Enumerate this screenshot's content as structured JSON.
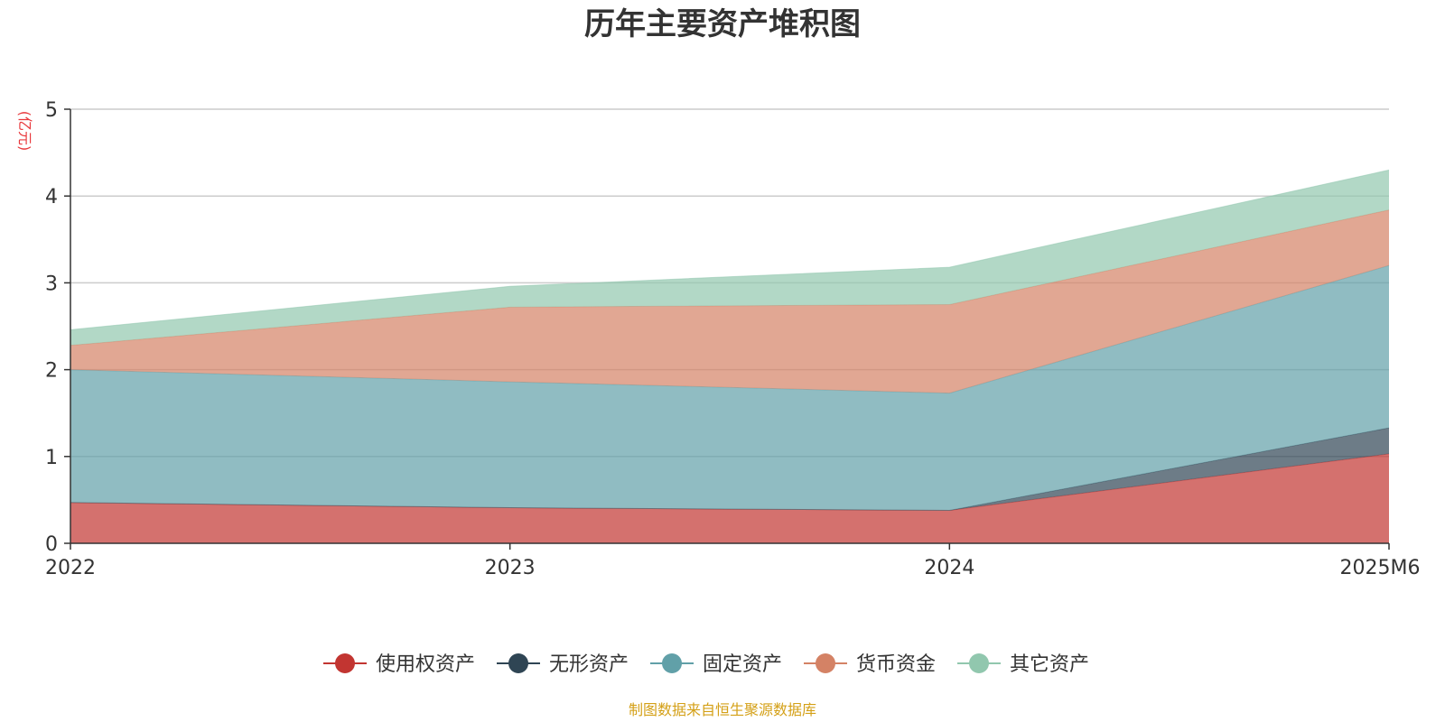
{
  "chart_data": {
    "type": "area",
    "stacked": true,
    "title": "历年主要资产堆积图",
    "ylabel": "(亿元)",
    "ylim": [
      0,
      5
    ],
    "yticks": [
      "0",
      "1",
      "2",
      "3",
      "4",
      "5"
    ],
    "categories": [
      "2022",
      "2023",
      "2024",
      "2025M6"
    ],
    "series": [
      {
        "name": "使用权资产",
        "color": "#c23531",
        "values": [
          0.47,
          0.41,
          0.38,
          1.03
        ]
      },
      {
        "name": "无形资产",
        "color": "#2f4554",
        "values": [
          0.0,
          0.0,
          0.0,
          0.3
        ]
      },
      {
        "name": "固定资产",
        "color": "#61a0a8",
        "values": [
          1.53,
          1.45,
          1.35,
          1.87
        ]
      },
      {
        "name": "货币资金",
        "color": "#d48265",
        "values": [
          0.28,
          0.86,
          1.02,
          0.64
        ]
      },
      {
        "name": "其它资产",
        "color": "#91c7ae",
        "values": [
          0.18,
          0.24,
          0.43,
          0.46
        ]
      }
    ],
    "legend_position": "bottom",
    "grid": true,
    "source": "制图数据来自恒生聚源数据库",
    "colors": {
      "unit": "#e8383c",
      "source": "#d4a017",
      "axis": "#333333",
      "grid": "#cccccc"
    }
  }
}
